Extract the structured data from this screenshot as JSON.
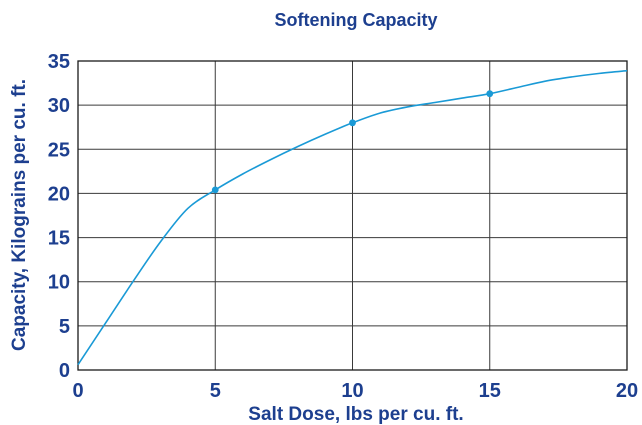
{
  "chart_data": {
    "type": "line",
    "title": "Softening Capacity",
    "xlabel": "Salt Dose, lbs per cu. ft.",
    "ylabel": "Capacity, Kilograins per cu. ft.",
    "xlim": [
      0,
      20
    ],
    "ylim": [
      0,
      35
    ],
    "x_ticks": [
      0,
      5,
      10,
      15,
      20
    ],
    "y_ticks": [
      0,
      5,
      10,
      15,
      20,
      25,
      30,
      35
    ],
    "grid": true,
    "series": [
      {
        "x": [
          0,
          1,
          2,
          3,
          4,
          5,
          6,
          7,
          8,
          9,
          10,
          11,
          12,
          13,
          14,
          15,
          16,
          17,
          18,
          19,
          20
        ],
        "y": [
          0.6,
          5.3,
          10.0,
          14.5,
          18.3,
          20.4,
          22.2,
          23.8,
          25.3,
          26.7,
          28.0,
          29.1,
          29.8,
          30.3,
          30.8,
          31.3,
          32.0,
          32.7,
          33.2,
          33.6,
          33.9
        ]
      }
    ],
    "markers": [
      {
        "x": 5,
        "y": 20.4
      },
      {
        "x": 10,
        "y": 28.0
      },
      {
        "x": 15,
        "y": 31.3
      }
    ],
    "colors": {
      "line": "#1a9ad6",
      "text": "#1d3f8f"
    }
  }
}
